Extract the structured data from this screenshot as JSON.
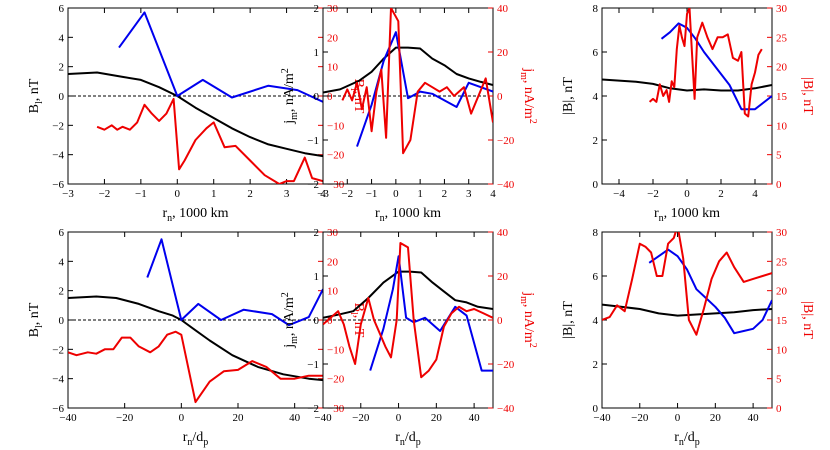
{
  "colors": {
    "black": "#000000",
    "blue": "#0000ee",
    "red": "#ee0000"
  },
  "chart_data": [
    {
      "type": "line",
      "panel": "top-left",
      "xlabel": "r_n, 1000 km",
      "ylabel_left": "B_l, nT",
      "ylabel_right": "B_l, nT",
      "xlim": [
        -3,
        4
      ],
      "ylim_left": [
        -6,
        6
      ],
      "ylim_right": [
        -30,
        30
      ],
      "xticks": [
        -3,
        -2,
        -1,
        0,
        1,
        2,
        3,
        4
      ],
      "yticks_left": [
        -6,
        -4,
        -2,
        0,
        2,
        4,
        6
      ],
      "yticks_right": [
        -30,
        -20,
        -10,
        0,
        10,
        20,
        30
      ],
      "zero_line": true,
      "series": [
        {
          "color": "black",
          "axis": "left",
          "x": [
            -3,
            -2.2,
            -1.5,
            -1,
            -0.5,
            0,
            0.5,
            1,
            1.5,
            2,
            2.5,
            3,
            3.5,
            4
          ],
          "y": [
            1.5,
            1.6,
            1.3,
            1.1,
            0.6,
            0,
            -0.8,
            -1.5,
            -2.2,
            -2.8,
            -3.3,
            -3.6,
            -3.9,
            -4.1
          ]
        },
        {
          "color": "blue",
          "axis": "left",
          "x": [
            -1.6,
            -0.9,
            0,
            0.7,
            1.5,
            2.5,
            3.3,
            4
          ],
          "y": [
            3.3,
            5.7,
            0,
            1.1,
            -0.1,
            0.7,
            0.4,
            -0.4
          ]
        },
        {
          "color": "red",
          "axis": "right",
          "x": [
            -2.2,
            -2.0,
            -1.8,
            -1.65,
            -1.5,
            -1.3,
            -1.1,
            -0.9,
            -0.7,
            -0.5,
            -0.3,
            -0.1,
            0.05,
            0.2,
            0.5,
            0.8,
            1.0,
            1.3,
            1.6,
            2.0,
            2.4,
            2.8,
            3.0,
            3.2,
            3.5,
            3.7,
            4.0
          ],
          "y": [
            -10.5,
            -11.5,
            -10,
            -11.5,
            -10.5,
            -11.5,
            -9,
            -3,
            -6,
            -8.5,
            -6,
            -1,
            -25,
            -22,
            -15,
            -11,
            -9,
            -17.5,
            -17,
            -22,
            -27,
            -30,
            -29,
            -29,
            -21,
            -28,
            -29
          ]
        }
      ]
    },
    {
      "type": "line",
      "panel": "top-middle",
      "xlabel": "r_n, 1000 km",
      "ylabel_left": "j_m, nA/m^2",
      "ylabel_right": "j_m, nA/m^2",
      "xlim": [
        -3,
        4
      ],
      "ylim_left": [
        -2,
        2
      ],
      "ylim_right": [
        -40,
        40
      ],
      "xticks": [
        -3,
        -2,
        -1,
        0,
        1,
        2,
        3,
        4
      ],
      "yticks_left": [
        -2,
        -1,
        0,
        1,
        2
      ],
      "yticks_right": [
        -40,
        -20,
        0,
        20,
        40
      ],
      "zero_line": true,
      "series": [
        {
          "color": "black",
          "axis": "left",
          "x": [
            -3,
            -2.3,
            -1.5,
            -1,
            -0.5,
            0,
            0.5,
            1,
            1.5,
            2,
            2.5,
            3,
            3.5,
            4
          ],
          "y": [
            0.08,
            0.15,
            0.35,
            0.55,
            0.85,
            1.1,
            1.1,
            1.08,
            0.85,
            0.7,
            0.5,
            0.4,
            0.32,
            0.25
          ]
        },
        {
          "color": "blue",
          "axis": "left",
          "x": [
            -1.6,
            -1,
            -0.5,
            0,
            0.5,
            1,
            1.5,
            2.5,
            3,
            3.5,
            4
          ],
          "y": [
            -1.15,
            -0.2,
            0.8,
            1.45,
            -0.05,
            0.1,
            0.05,
            -0.25,
            0.3,
            0.2,
            0.1
          ]
        },
        {
          "color": "red",
          "axis": "right",
          "x": [
            -2.2,
            -2.0,
            -1.8,
            -1.6,
            -1.4,
            -1.2,
            -1.0,
            -0.8,
            -0.6,
            -0.4,
            -0.2,
            0.0,
            0.1,
            0.3,
            0.6,
            0.9,
            1.2,
            1.5,
            1.8,
            2.1,
            2.4,
            2.8,
            3.1,
            3.4,
            3.7,
            4.0
          ],
          "y": [
            -2,
            3,
            -2,
            6,
            -6,
            4,
            -16,
            2,
            12,
            -19,
            40,
            36,
            34,
            -26,
            -20,
            2,
            6,
            4,
            2,
            4,
            0,
            4,
            -8,
            0,
            8,
            -12
          ]
        }
      ]
    },
    {
      "type": "line",
      "panel": "top-right",
      "xlabel": "r_n, 1000 km",
      "ylabel_left": "|B|, nT",
      "ylabel_right": "|B|, nT",
      "xlim": [
        -5,
        5
      ],
      "ylim_left": [
        0,
        8
      ],
      "ylim_right": [
        0,
        30
      ],
      "xticks": [
        -4,
        -2,
        0,
        2,
        4
      ],
      "yticks_left": [
        0,
        2,
        4,
        6,
        8
      ],
      "yticks_right": [
        0,
        5,
        10,
        15,
        20,
        25,
        30
      ],
      "zero_line": false,
      "series": [
        {
          "color": "black",
          "axis": "left",
          "x": [
            -5,
            -4,
            -3,
            -2,
            -1,
            0,
            1,
            2,
            3,
            4,
            5
          ],
          "y": [
            4.75,
            4.7,
            4.65,
            4.55,
            4.35,
            4.25,
            4.3,
            4.25,
            4.25,
            4.35,
            4.5
          ]
        },
        {
          "color": "blue",
          "axis": "left",
          "x": [
            -1.5,
            -1,
            -0.5,
            0,
            0.5,
            1,
            1.5,
            2.5,
            3.2,
            4,
            5
          ],
          "y": [
            6.6,
            6.9,
            7.3,
            7.1,
            6.6,
            6.0,
            5.5,
            4.5,
            3.4,
            3.4,
            4.0
          ]
        },
        {
          "color": "red",
          "axis": "right",
          "x": [
            -2.2,
            -2.0,
            -1.8,
            -1.6,
            -1.4,
            -1.2,
            -1.05,
            -0.9,
            -0.75,
            -0.6,
            -0.45,
            -0.3,
            -0.15,
            0.0,
            0.15,
            0.3,
            0.45,
            0.6,
            0.9,
            1.2,
            1.5,
            1.8,
            2.1,
            2.4,
            2.7,
            3.0,
            3.2,
            3.4,
            3.6,
            3.8,
            4.0,
            4.2,
            4.4
          ],
          "y": [
            14,
            14.5,
            14,
            17,
            15,
            16,
            14,
            17.5,
            16.5,
            23,
            27,
            25,
            23.5,
            29,
            30,
            22,
            14.5,
            25,
            27.5,
            25,
            23,
            25,
            25,
            25.5,
            21.5,
            21,
            22.5,
            12,
            11.5,
            17,
            19,
            22,
            23
          ]
        }
      ]
    },
    {
      "type": "line",
      "panel": "bottom-left",
      "xlabel": "r_n/d_p",
      "ylabel_left": "B_l, nT",
      "ylabel_right": "B_l, nT",
      "xlim": [
        -40,
        50
      ],
      "ylim_left": [
        -6,
        6
      ],
      "ylim_right": [
        -30,
        30
      ],
      "xticks": [
        -40,
        -20,
        0,
        20,
        40
      ],
      "yticks_left": [
        -6,
        -4,
        -2,
        0,
        2,
        4,
        6
      ],
      "yticks_right": [
        -30,
        -20,
        -10,
        0,
        10,
        20,
        30
      ],
      "zero_line": true,
      "series": [
        {
          "color": "black",
          "axis": "left",
          "x": [
            -40,
            -30,
            -23,
            -15,
            -8,
            -3,
            0,
            5,
            10,
            18,
            27,
            36,
            45,
            50
          ],
          "y": [
            1.5,
            1.6,
            1.5,
            1.1,
            0.6,
            0.3,
            0,
            -0.7,
            -1.4,
            -2.4,
            -3.2,
            -3.7,
            -4.0,
            -4.1
          ]
        },
        {
          "color": "blue",
          "axis": "left",
          "x": [
            -12,
            -7,
            0,
            6,
            14,
            22,
            32,
            38,
            45,
            50
          ],
          "y": [
            2.9,
            5.5,
            0,
            1.1,
            0.0,
            0.7,
            0.4,
            -0.35,
            0.2,
            2.1
          ]
        },
        {
          "color": "red",
          "axis": "right",
          "x": [
            -40,
            -37,
            -33,
            -30,
            -27,
            -24,
            -21,
            -18,
            -15,
            -11,
            -8,
            -5,
            -2,
            0,
            5,
            10,
            15,
            20,
            25,
            30,
            35,
            40,
            45,
            50
          ],
          "y": [
            -11,
            -12,
            -11,
            -11.5,
            -10,
            -10,
            -6,
            -6,
            -9,
            -11,
            -9,
            -5,
            -4,
            -5,
            -28,
            -21,
            -17.5,
            -17,
            -14,
            -16,
            -20,
            -20,
            -19,
            -19
          ]
        }
      ]
    },
    {
      "type": "line",
      "panel": "bottom-middle",
      "xlabel": "r_n/d_p",
      "ylabel_left": "j_m, nA/m^2",
      "ylabel_right": "j_m, nA/m^2",
      "xlim": [
        -40,
        50
      ],
      "ylim_left": [
        -2,
        2
      ],
      "ylim_right": [
        -40,
        40
      ],
      "xticks": [
        -40,
        -20,
        0,
        20,
        40
      ],
      "yticks_left": [
        -2,
        -1,
        0,
        1,
        2
      ],
      "yticks_right": [
        -40,
        -20,
        0,
        20,
        40
      ],
      "zero_line": true,
      "series": [
        {
          "color": "black",
          "axis": "left",
          "x": [
            -40,
            -32,
            -24,
            -16,
            -8,
            0,
            6,
            12,
            18,
            24,
            30,
            36,
            42,
            50
          ],
          "y": [
            0.05,
            0.12,
            0.2,
            0.5,
            0.85,
            1.1,
            1.1,
            1.08,
            0.85,
            0.65,
            0.45,
            0.4,
            0.3,
            0.25
          ]
        },
        {
          "color": "blue",
          "axis": "left",
          "x": [
            -15,
            -8,
            -3,
            0,
            4,
            8,
            14,
            22,
            30,
            36,
            44,
            50
          ],
          "y": [
            -1.15,
            -0.2,
            0.7,
            1.45,
            0.05,
            -0.05,
            0.05,
            -0.25,
            0.3,
            0.1,
            -1.15,
            -1.15
          ]
        },
        {
          "color": "red",
          "axis": "right",
          "x": [
            -40,
            -36,
            -32,
            -29,
            -26,
            -23,
            -20,
            -16,
            -13,
            -10,
            -7,
            -4,
            -1,
            1,
            5,
            8,
            12,
            16,
            20,
            24,
            28,
            32,
            36,
            40,
            45,
            50
          ],
          "y": [
            -2,
            1,
            4,
            -2,
            -12,
            -20,
            -2,
            10,
            0,
            -6,
            -12,
            -17,
            0,
            35,
            33,
            0,
            -26,
            -23,
            -18,
            -3,
            3,
            6,
            4,
            5,
            3,
            1
          ]
        }
      ]
    },
    {
      "type": "line",
      "panel": "bottom-right",
      "xlabel": "r_n/d_p",
      "ylabel_left": "|B|, nT",
      "ylabel_right": "|B|, nT",
      "xlim": [
        -40,
        50
      ],
      "ylim_left": [
        0,
        8
      ],
      "ylim_right": [
        0,
        30
      ],
      "xticks": [
        -40,
        -20,
        0,
        20,
        40
      ],
      "yticks_left": [
        0,
        2,
        4,
        6,
        8
      ],
      "yticks_right": [
        0,
        5,
        10,
        15,
        20,
        25,
        30
      ],
      "zero_line": false,
      "series": [
        {
          "color": "black",
          "axis": "left",
          "x": [
            -40,
            -30,
            -20,
            -10,
            0,
            10,
            20,
            30,
            40,
            50
          ],
          "y": [
            4.7,
            4.6,
            4.5,
            4.3,
            4.2,
            4.25,
            4.3,
            4.35,
            4.45,
            4.5
          ]
        },
        {
          "color": "blue",
          "axis": "left",
          "x": [
            -15,
            -10,
            -5,
            0,
            5,
            10,
            15,
            20,
            25,
            30,
            35,
            40,
            45,
            50
          ],
          "y": [
            6.6,
            6.9,
            7.2,
            6.9,
            6.3,
            5.4,
            5.0,
            4.6,
            4.1,
            3.4,
            3.5,
            3.6,
            4.0,
            4.9
          ]
        },
        {
          "color": "red",
          "axis": "right",
          "x": [
            -40,
            -36,
            -32,
            -28,
            -24,
            -20,
            -17,
            -14,
            -11,
            -8,
            -5,
            -2,
            0,
            3,
            6,
            10,
            14,
            18,
            22,
            26,
            30,
            35,
            40,
            45,
            50
          ],
          "y": [
            15,
            15.5,
            17.5,
            16.5,
            22,
            28,
            27.5,
            26.5,
            22.5,
            22.5,
            28,
            29,
            31,
            25.5,
            15,
            12.5,
            17,
            22,
            25,
            26.5,
            24,
            21.5,
            22,
            22.5,
            23
          ]
        }
      ]
    }
  ]
}
